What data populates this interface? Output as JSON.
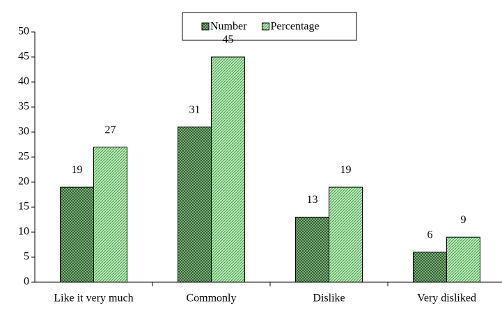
{
  "chart_data": {
    "type": "bar",
    "categories": [
      "Like it very much",
      "Commonly",
      "Dislike",
      "Very disliked"
    ],
    "series": [
      {
        "name": "Number",
        "color": "#3a6b3a",
        "values": [
          19,
          31,
          13,
          6
        ]
      },
      {
        "name": "Percentage",
        "color": "#9fe39f",
        "values": [
          27,
          45,
          19,
          9
        ]
      }
    ],
    "ylim": [
      0,
      50
    ],
    "yticks": [
      0,
      5,
      10,
      15,
      20,
      25,
      30,
      35,
      40,
      45,
      50
    ],
    "grid": false,
    "legend": "top",
    "data_labels": true
  }
}
